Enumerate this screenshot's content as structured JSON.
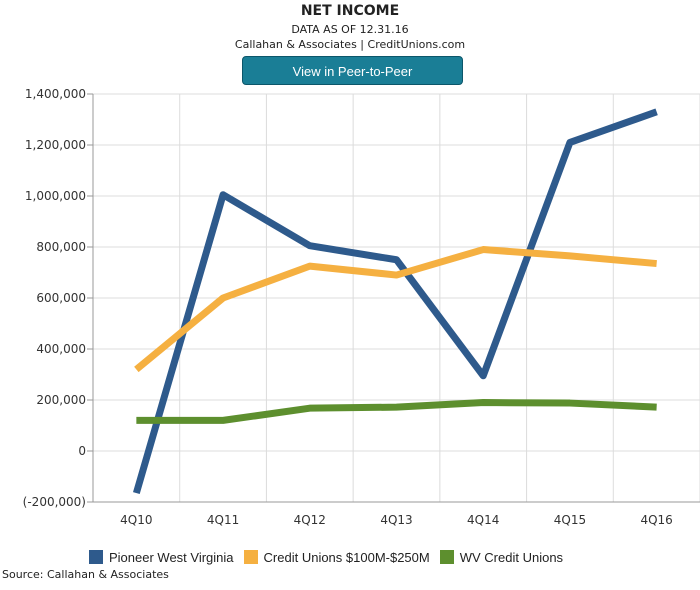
{
  "header": {
    "title": "NET INCOME",
    "subtitle": "DATA AS OF 12.31.16",
    "attribution": "Callahan & Associates | CreditUnions.com",
    "peer_button_label": "View in Peer-to-Peer"
  },
  "footer": {
    "source": "Source: Callahan & Associates"
  },
  "chart_data": {
    "type": "line",
    "title": "NET INCOME",
    "xlabel": "",
    "ylabel": "",
    "categories": [
      "4Q10",
      "4Q11",
      "4Q12",
      "4Q13",
      "4Q14",
      "4Q15",
      "4Q16"
    ],
    "ylim": [
      -200000,
      1400000
    ],
    "yticks": [
      -200000,
      0,
      200000,
      400000,
      600000,
      800000,
      1000000,
      1200000,
      1400000
    ],
    "ytick_labels": [
      "(-200,000)",
      "0",
      "200,000",
      "400,000",
      "600,000",
      "800,000",
      "1,000,000",
      "1,200,000",
      "1,400,000"
    ],
    "grid": true,
    "legend_position": "bottom",
    "series": [
      {
        "name": "Pioneer West Virginia",
        "color": "#2e5a8c",
        "values": [
          -165000,
          1005000,
          805000,
          750000,
          295000,
          1210000,
          1330000
        ]
      },
      {
        "name": "Credit Unions $100M-$250M",
        "color": "#f5b041",
        "values": [
          320000,
          600000,
          725000,
          690000,
          790000,
          765000,
          735000
        ]
      },
      {
        "name": "WV Credit Unions",
        "color": "#5d8f2e",
        "values": [
          120000,
          120000,
          168000,
          172000,
          190000,
          188000,
          172000
        ]
      }
    ]
  }
}
